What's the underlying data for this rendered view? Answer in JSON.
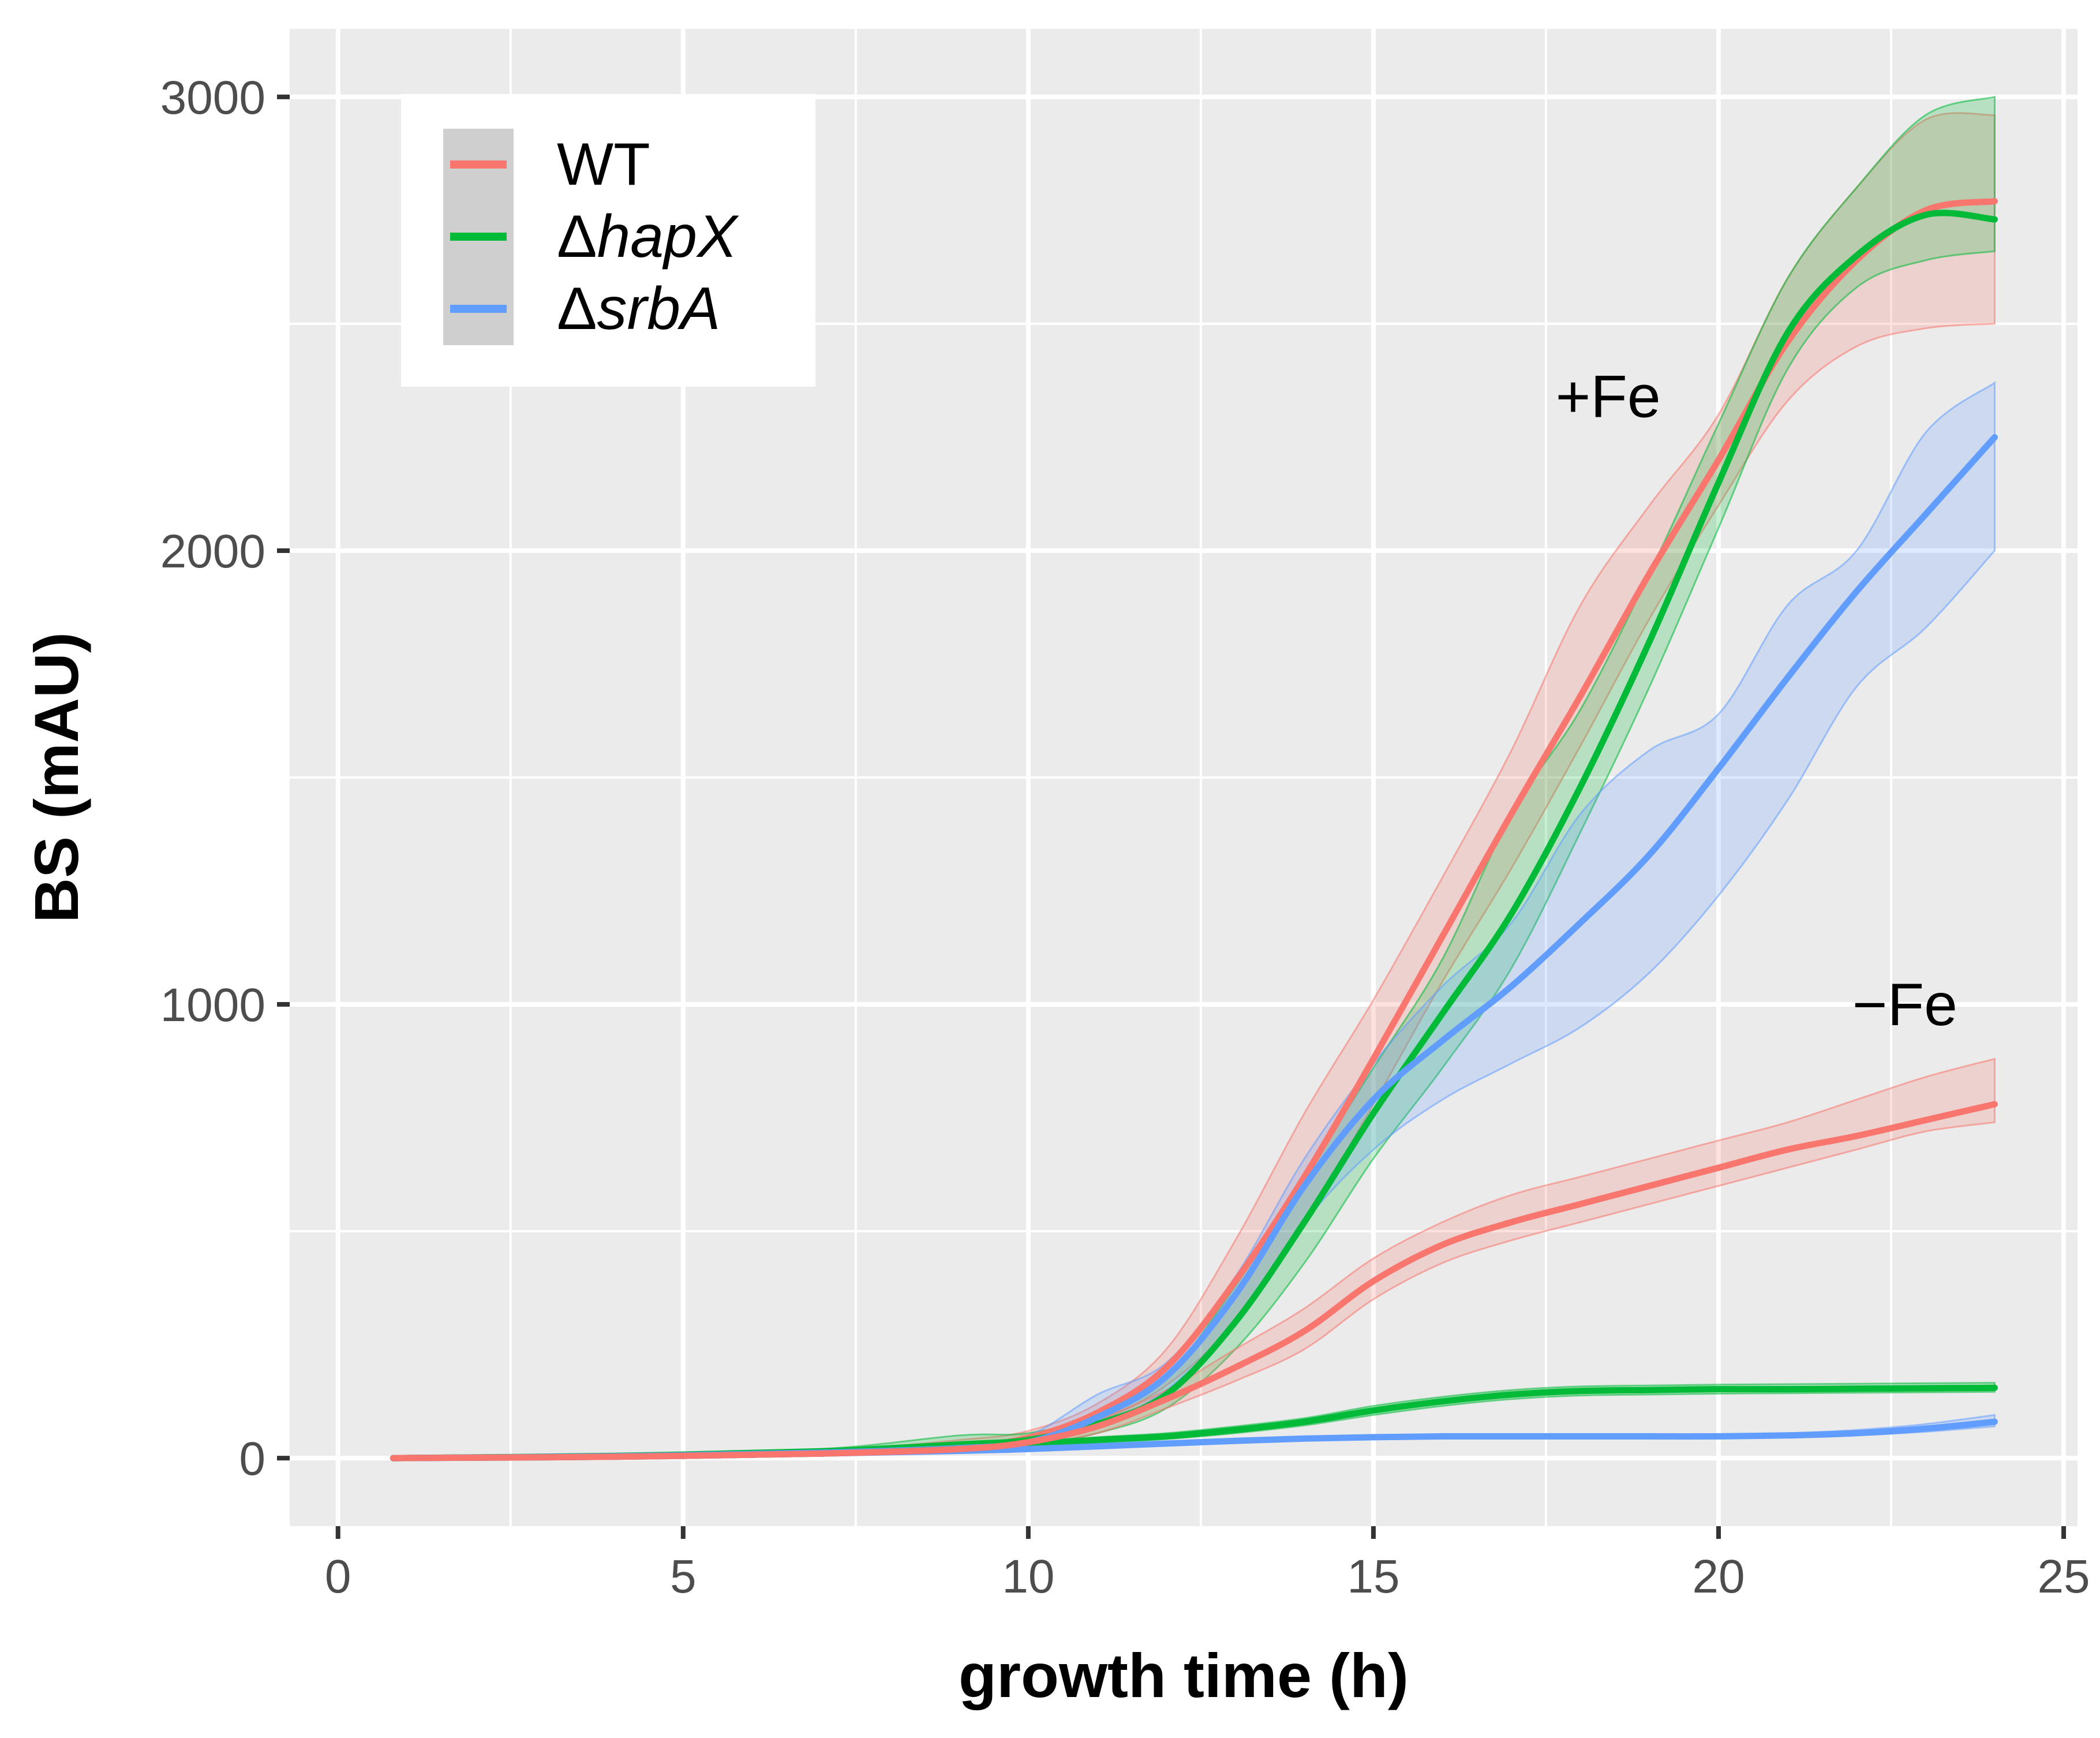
{
  "chart_data": {
    "type": "line",
    "xlabel": "growth time (h)",
    "ylabel": "BS (mAU)",
    "xlim": [
      -0.7,
      25.2
    ],
    "ylim": [
      -150,
      3150
    ],
    "xticks": [
      0,
      5,
      10,
      15,
      20,
      25
    ],
    "xtick_labels": [
      "0",
      "5",
      "10",
      "15",
      "20",
      "25"
    ],
    "yticks": [
      0,
      1000,
      2000,
      3000
    ],
    "ytick_labels": [
      "0",
      "1000",
      "2000",
      "3000"
    ],
    "grid": true,
    "legend_position": "top-left",
    "colors": {
      "WT": "#F8766D",
      "hapX": "#00BA38",
      "srbA": "#619CFF",
      "panel": "#EBEBEB",
      "grid": "#FFFFFF"
    },
    "legend": [
      {
        "key": "WT",
        "prefix": "",
        "label": "WT",
        "italic": false
      },
      {
        "key": "hapX",
        "prefix": "Δ",
        "label": "hapX",
        "italic": true
      },
      {
        "key": "srbA",
        "prefix": "Δ",
        "label": "srbA",
        "italic": true
      }
    ],
    "annotations": [
      {
        "text": "+Fe",
        "x": 18.4,
        "y": 2340
      },
      {
        "text": "−Fe",
        "x": 22.7,
        "y": 1000
      }
    ],
    "series": [
      {
        "name": "WT",
        "condition": "+Fe",
        "color": "#F8766D",
        "x": [
          0.8,
          4,
          7,
          9,
          10,
          11,
          12,
          13,
          14,
          15,
          16,
          17,
          18,
          19,
          20,
          21,
          22,
          23,
          24
        ],
        "y": [
          0,
          4,
          12,
          25,
          45,
          100,
          200,
          390,
          620,
          880,
          1150,
          1420,
          1680,
          1950,
          2200,
          2460,
          2640,
          2750,
          2770
        ],
        "low": [
          0,
          2,
          8,
          18,
          35,
          80,
          160,
          300,
          520,
          780,
          1050,
          1300,
          1570,
          1850,
          2100,
          2330,
          2450,
          2490,
          2500
        ],
        "high": [
          0,
          6,
          16,
          40,
          60,
          120,
          240,
          480,
          760,
          1010,
          1280,
          1560,
          1880,
          2100,
          2300,
          2600,
          2800,
          2950,
          2960
        ]
      },
      {
        "name": "ΔhapX",
        "condition": "+Fe",
        "color": "#00BA38",
        "x": [
          0.8,
          4,
          7,
          9,
          10,
          11,
          12,
          13,
          14,
          15,
          16,
          17,
          18,
          19,
          20,
          21,
          22,
          23,
          24
        ],
        "y": [
          0,
          5,
          15,
          30,
          40,
          75,
          140,
          300,
          520,
          760,
          980,
          1200,
          1480,
          1800,
          2150,
          2480,
          2650,
          2740,
          2730
        ],
        "low": [
          0,
          3,
          10,
          20,
          30,
          55,
          110,
          240,
          430,
          660,
          860,
          1080,
          1380,
          1700,
          2050,
          2400,
          2580,
          2640,
          2660
        ],
        "high": [
          0,
          7,
          20,
          50,
          55,
          95,
          180,
          380,
          620,
          860,
          1100,
          1420,
          1650,
          1950,
          2280,
          2600,
          2800,
          2960,
          3000
        ]
      },
      {
        "name": "ΔsrbA",
        "condition": "+Fe",
        "color": "#619CFF",
        "x": [
          0.8,
          4,
          7,
          9,
          10,
          11,
          12,
          13,
          14,
          15,
          16,
          17,
          18,
          19,
          20,
          21,
          22,
          23,
          24
        ],
        "y": [
          0,
          4,
          12,
          22,
          35,
          90,
          180,
          360,
          600,
          790,
          920,
          1040,
          1180,
          1330,
          1520,
          1720,
          1910,
          2080,
          2250
        ],
        "low": [
          0,
          2,
          8,
          15,
          25,
          70,
          150,
          300,
          520,
          680,
          790,
          870,
          950,
          1070,
          1240,
          1450,
          1700,
          1830,
          2000
        ],
        "high": [
          0,
          6,
          16,
          30,
          50,
          140,
          210,
          400,
          660,
          870,
          1040,
          1180,
          1420,
          1560,
          1640,
          1880,
          2000,
          2260,
          2370
        ]
      },
      {
        "name": "WT",
        "condition": "−Fe",
        "color": "#F8766D",
        "x": [
          0.8,
          4,
          7,
          9,
          10,
          11,
          12,
          13,
          14,
          15,
          16,
          17,
          18,
          19,
          20,
          21,
          22,
          23,
          24
        ],
        "y": [
          0,
          3,
          10,
          20,
          35,
          70,
          130,
          200,
          280,
          390,
          470,
          520,
          560,
          600,
          640,
          680,
          710,
          745,
          780
        ],
        "low": [
          0,
          2,
          7,
          15,
          28,
          55,
          110,
          170,
          240,
          350,
          430,
          480,
          520,
          560,
          600,
          640,
          680,
          720,
          740
        ],
        "high": [
          0,
          4,
          13,
          25,
          42,
          85,
          150,
          240,
          330,
          440,
          520,
          580,
          620,
          660,
          700,
          740,
          790,
          840,
          880
        ]
      },
      {
        "name": "ΔhapX",
        "condition": "−Fe",
        "color": "#00BA38",
        "x": [
          0.8,
          4,
          7,
          9,
          10,
          11,
          12,
          13,
          14,
          15,
          16,
          17,
          18,
          19,
          20,
          21,
          22,
          23,
          24
        ],
        "y": [
          0,
          3,
          10,
          20,
          30,
          40,
          48,
          62,
          80,
          105,
          125,
          140,
          148,
          150,
          152,
          152,
          153,
          154,
          155
        ],
        "low": [
          0,
          2,
          8,
          15,
          24,
          34,
          42,
          55,
          72,
          95,
          115,
          130,
          138,
          140,
          142,
          143,
          144,
          145,
          146
        ],
        "high": [
          0,
          4,
          12,
          25,
          36,
          46,
          55,
          70,
          88,
          115,
          135,
          150,
          158,
          160,
          162,
          163,
          164,
          165,
          166
        ]
      },
      {
        "name": "ΔsrbA",
        "condition": "−Fe",
        "color": "#619CFF",
        "x": [
          0.8,
          4,
          7,
          9,
          10,
          11,
          12,
          13,
          14,
          15,
          16,
          17,
          18,
          19,
          20,
          21,
          22,
          23,
          24
        ],
        "y": [
          0,
          3,
          10,
          16,
          20,
          26,
          32,
          38,
          43,
          46,
          48,
          48,
          48,
          48,
          48,
          50,
          55,
          65,
          80
        ],
        "low": [
          0,
          2,
          8,
          13,
          16,
          22,
          28,
          34,
          39,
          42,
          44,
          44,
          44,
          44,
          44,
          46,
          50,
          58,
          70
        ],
        "high": [
          0,
          4,
          12,
          19,
          24,
          30,
          36,
          42,
          47,
          50,
          52,
          52,
          52,
          52,
          52,
          55,
          62,
          75,
          95
        ]
      }
    ]
  }
}
